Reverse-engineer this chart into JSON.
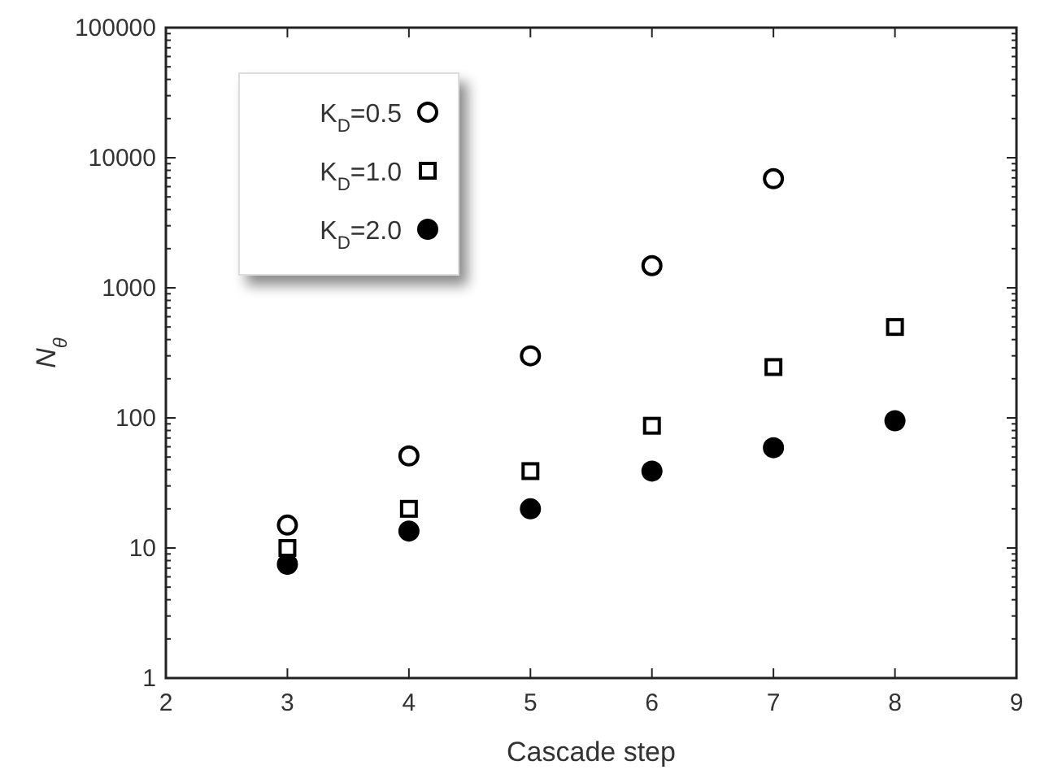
{
  "chart_data": {
    "type": "scatter",
    "xlabel": "Cascade step",
    "ylabel": "N$_{θ}$",
    "log": "y",
    "xlim": [
      2,
      9
    ],
    "xticks": [
      2,
      3,
      4,
      5,
      6,
      7,
      8,
      9
    ],
    "ylim": [
      1,
      100000
    ],
    "yticks": [
      1,
      10,
      100,
      1000,
      10000,
      100000
    ],
    "legend": "top left",
    "grid": false,
    "x": [
      3,
      4,
      5,
      6,
      7,
      8
    ],
    "series": [
      {
        "name": "K$_{D}$=0.5",
        "color": "#ffffff",
        "marker": "circle",
        "values": [
          15,
          51,
          300,
          1480,
          6900,
          null
        ]
      },
      {
        "name": "K$_{D}$=1.0",
        "color": "#ffffff",
        "marker": "square",
        "values": [
          10,
          20,
          39,
          87,
          246,
          500
        ]
      },
      {
        "name": "K$_{D}$=2.0",
        "color": "#000000",
        "marker": "circle",
        "values": [
          7.5,
          13.5,
          20,
          39,
          59,
          95
        ]
      }
    ]
  }
}
